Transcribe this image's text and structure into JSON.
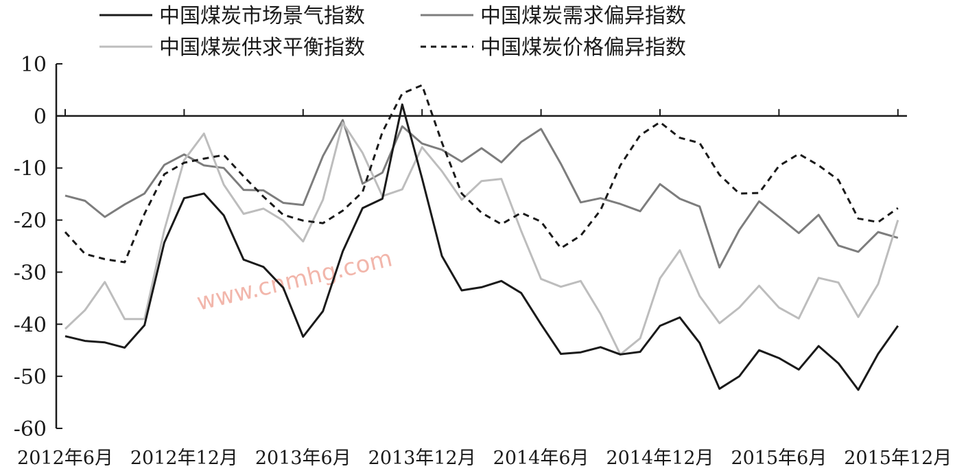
{
  "chart_data": {
    "type": "line",
    "title": "",
    "xlabel": "",
    "ylabel": "",
    "ylim": [
      -60,
      10
    ],
    "yticks": [
      10,
      0,
      -10,
      -20,
      -30,
      -40,
      -50,
      -60
    ],
    "ytick_labels": [
      "10",
      "0",
      "-10",
      "-20",
      "-30",
      "-40",
      "-50",
      "-60"
    ],
    "x_start": "2012-06",
    "x_end": "2015-12",
    "xtick_labels": [
      "2012年6月",
      "2012年12月",
      "2013年6月",
      "2013年12月",
      "2014年6月",
      "2014年12月",
      "2015年6月",
      "2015年12月"
    ],
    "xtick_months": [
      "2012-06",
      "2012-12",
      "2013-06",
      "2013-12",
      "2014-06",
      "2014-12",
      "2015-06",
      "2015-12"
    ],
    "legend_position": "top",
    "grid": false,
    "watermark": "www.cnmhg.com",
    "series": [
      {
        "name": "中国煤炭市场景气指数",
        "color": "#1a1a1a",
        "dash": "solid",
        "values": [
          -42.3,
          -43.2,
          -43.5,
          -44.5,
          -40.2,
          -24.3,
          -15.8,
          -14.9,
          -19.1,
          -27.6,
          -29.0,
          -33.0,
          -42.4,
          -37.5,
          -26.0,
          -17.7,
          -15.9,
          2.2,
          -12.0,
          -26.9,
          -33.5,
          -32.9,
          -31.7,
          -34.0,
          -40.0,
          -45.7,
          -45.4,
          -44.4,
          -45.8,
          -45.3,
          -40.3,
          -38.7,
          -43.6,
          -52.4,
          -50.0,
          -45.0,
          -46.5,
          -48.7,
          -44.2,
          -47.5,
          -52.6,
          -45.7,
          -40.3
        ]
      },
      {
        "name": "中国煤炭需求偏异指数",
        "color": "#7d7d7d",
        "dash": "solid",
        "values": [
          -15.3,
          -16.3,
          -19.4,
          -17.0,
          -14.9,
          -9.4,
          -7.4,
          -9.5,
          -10.0,
          -14.2,
          -14.3,
          -16.7,
          -17.1,
          -7.7,
          -0.8,
          -13.0,
          -10.9,
          -2.0,
          -5.3,
          -6.5,
          -8.8,
          -6.2,
          -8.9,
          -5.0,
          -2.5,
          -9.2,
          -16.6,
          -15.8,
          -16.9,
          -18.3,
          -13.1,
          -15.9,
          -17.4,
          -29.1,
          -21.9,
          -16.4,
          -19.4,
          -22.5,
          -19.0,
          -24.9,
          -26.1,
          -22.3,
          -23.4
        ]
      },
      {
        "name": "中国煤炭供求平衡指数",
        "color": "#bdbdbd",
        "dash": "solid",
        "values": [
          -40.9,
          -37.3,
          -31.9,
          -39.0,
          -39.0,
          -21.9,
          -8.5,
          -3.4,
          -13.2,
          -18.8,
          -17.8,
          -20.1,
          -24.1,
          -16.1,
          -1.3,
          -7.1,
          -15.4,
          -14.1,
          -6.0,
          -10.6,
          -16.1,
          -12.5,
          -12.1,
          -22.1,
          -31.3,
          -32.8,
          -31.7,
          -38.0,
          -45.8,
          -42.7,
          -31.2,
          -25.8,
          -34.6,
          -39.8,
          -36.8,
          -32.6,
          -36.8,
          -38.9,
          -31.1,
          -32.0,
          -38.6,
          -32.3,
          -20.0
        ]
      },
      {
        "name": "中国煤炭价格偏异指数",
        "color": "#1a1a1a",
        "dash": "dashed",
        "values": [
          -22.3,
          -26.5,
          -27.5,
          -28.1,
          -18.8,
          -11.2,
          -9.0,
          -8.2,
          -7.5,
          -11.6,
          -15.5,
          -19.0,
          -20.1,
          -20.6,
          -18.2,
          -14.6,
          -3.1,
          4.3,
          5.9,
          -5.1,
          -14.9,
          -18.6,
          -20.8,
          -18.6,
          -20.3,
          -25.4,
          -23.0,
          -18.1,
          -9.5,
          -3.7,
          -1.2,
          -4.2,
          -5.2,
          -11.3,
          -14.9,
          -14.8,
          -9.6,
          -7.3,
          -9.5,
          -12.3,
          -19.7,
          -20.4,
          -17.7
        ]
      }
    ]
  }
}
